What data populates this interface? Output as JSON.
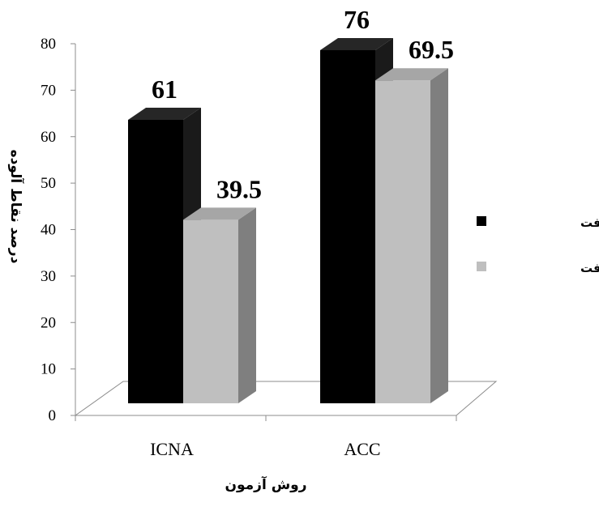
{
  "chart_data": {
    "type": "bar",
    "categories": [
      "ICNA",
      "ACC"
    ],
    "series": [
      {
        "name": "پیش از نظافت",
        "values": [
          61,
          76
        ],
        "color": "#000000"
      },
      {
        "name": "پس از نظافت",
        "values": [
          39.5,
          69.5
        ],
        "color": "#bfbfbf"
      }
    ],
    "data_labels": [
      [
        "61",
        "76"
      ],
      [
        "39.5",
        "69.5"
      ]
    ],
    "xlabel": "روش آزمون",
    "ylabel": "درصد نقاط آلوده",
    "ylim": [
      0,
      80
    ],
    "yticks": [
      0,
      10,
      20,
      30,
      40,
      50,
      60,
      70,
      80
    ],
    "ytick_labels": [
      "0",
      "10",
      "20",
      "30",
      "40",
      "50",
      "60",
      "70",
      "80"
    ],
    "grid": false,
    "legend_position": "right",
    "style": "3d-column"
  }
}
